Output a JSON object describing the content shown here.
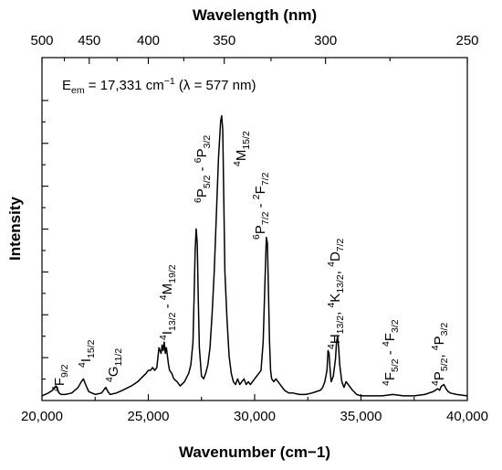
{
  "chart_data": {
    "type": "line",
    "xlabel": "Wavenumber (cm−1)",
    "x2label": "Wavelength (nm)",
    "ylabel": "Intensity",
    "xlim": [
      20000,
      40000
    ],
    "ylim": [
      0,
      1
    ],
    "x_ticks": [
      20000,
      25000,
      30000,
      35000,
      40000
    ],
    "x_tick_labels": [
      "20,000",
      "25,000",
      "30,000",
      "35,000",
      "40,000"
    ],
    "x2_ticks_nm": [
      500,
      450,
      400,
      350,
      300,
      250
    ],
    "x2_tick_labels": [
      "500",
      "450",
      "400",
      "350",
      "300",
      "250"
    ],
    "y_tick_labels_shown": false,
    "annotation": "E_em = 17,331 cm−1 (λ = 577 nm)",
    "series": [
      {
        "x": [
          20000,
          20300,
          20500,
          20650,
          20700,
          20800,
          20900,
          21100,
          21400,
          21700,
          21850,
          21950,
          22050,
          22200,
          22500,
          22800,
          22900,
          23000,
          23100,
          23200,
          23500,
          23800,
          24200,
          24500,
          24700,
          24900,
          25000,
          25100,
          25200,
          25300,
          25400,
          25500,
          25550,
          25600,
          25650,
          25700,
          25750,
          25800,
          25850,
          25900,
          25950,
          26000,
          26100,
          26200,
          26350,
          26500,
          26700,
          26900,
          27000,
          27100,
          27150,
          27200,
          27250,
          27300,
          27350,
          27400,
          27500,
          27600,
          27700,
          27800,
          27900,
          28000,
          28100,
          28200,
          28300,
          28400,
          28450,
          28500,
          28550,
          28600,
          28700,
          28800,
          28900,
          29000,
          29100,
          29200,
          29300,
          29400,
          29500,
          29600,
          29700,
          29800,
          29900,
          30000,
          30100,
          30200,
          30300,
          30400,
          30500,
          30550,
          30600,
          30650,
          30700,
          30750,
          30800,
          30900,
          31000,
          31100,
          31200,
          31300,
          31400,
          31600,
          31800,
          32100,
          32400,
          32700,
          32900,
          33100,
          33200,
          33300,
          33400,
          33450,
          33500,
          33550,
          33600,
          33700,
          33800,
          33850,
          33900,
          33950,
          34000,
          34100,
          34200,
          34300,
          34400,
          34600,
          34800,
          35000,
          35500,
          36000,
          36500,
          37000,
          37500,
          38000,
          38200,
          38400,
          38500,
          38600,
          38700,
          38750,
          38800,
          38900,
          39000,
          39100,
          39200,
          39500,
          40000
        ],
        "y": [
          0.01,
          0.02,
          0.03,
          0.045,
          0.04,
          0.02,
          0.015,
          0.015,
          0.02,
          0.04,
          0.06,
          0.07,
          0.05,
          0.025,
          0.015,
          0.02,
          0.03,
          0.04,
          0.025,
          0.015,
          0.02,
          0.03,
          0.045,
          0.06,
          0.075,
          0.09,
          0.1,
          0.1,
          0.11,
          0.1,
          0.11,
          0.18,
          0.17,
          0.16,
          0.19,
          0.17,
          0.2,
          0.16,
          0.18,
          0.15,
          0.12,
          0.1,
          0.09,
          0.07,
          0.06,
          0.045,
          0.06,
          0.09,
          0.12,
          0.2,
          0.35,
          0.52,
          0.6,
          0.55,
          0.35,
          0.18,
          0.08,
          0.07,
          0.09,
          0.12,
          0.18,
          0.3,
          0.45,
          0.65,
          0.85,
          0.98,
          1.0,
          0.95,
          0.7,
          0.45,
          0.28,
          0.15,
          0.09,
          0.06,
          0.05,
          0.07,
          0.05,
          0.06,
          0.07,
          0.05,
          0.06,
          0.05,
          0.06,
          0.07,
          0.08,
          0.09,
          0.1,
          0.2,
          0.45,
          0.57,
          0.55,
          0.38,
          0.2,
          0.1,
          0.07,
          0.06,
          0.07,
          0.06,
          0.05,
          0.04,
          0.03,
          0.02,
          0.02,
          0.015,
          0.015,
          0.02,
          0.025,
          0.03,
          0.04,
          0.06,
          0.1,
          0.17,
          0.16,
          0.1,
          0.06,
          0.08,
          0.14,
          0.2,
          0.22,
          0.18,
          0.12,
          0.06,
          0.04,
          0.06,
          0.05,
          0.03,
          0.015,
          0.01,
          0.01,
          0.01,
          0.015,
          0.01,
          0.01,
          0.015,
          0.02,
          0.025,
          0.03,
          0.035,
          0.03,
          0.04,
          0.045,
          0.05,
          0.035,
          0.025,
          0.02,
          0.015,
          0.01
        ]
      }
    ]
  }
}
